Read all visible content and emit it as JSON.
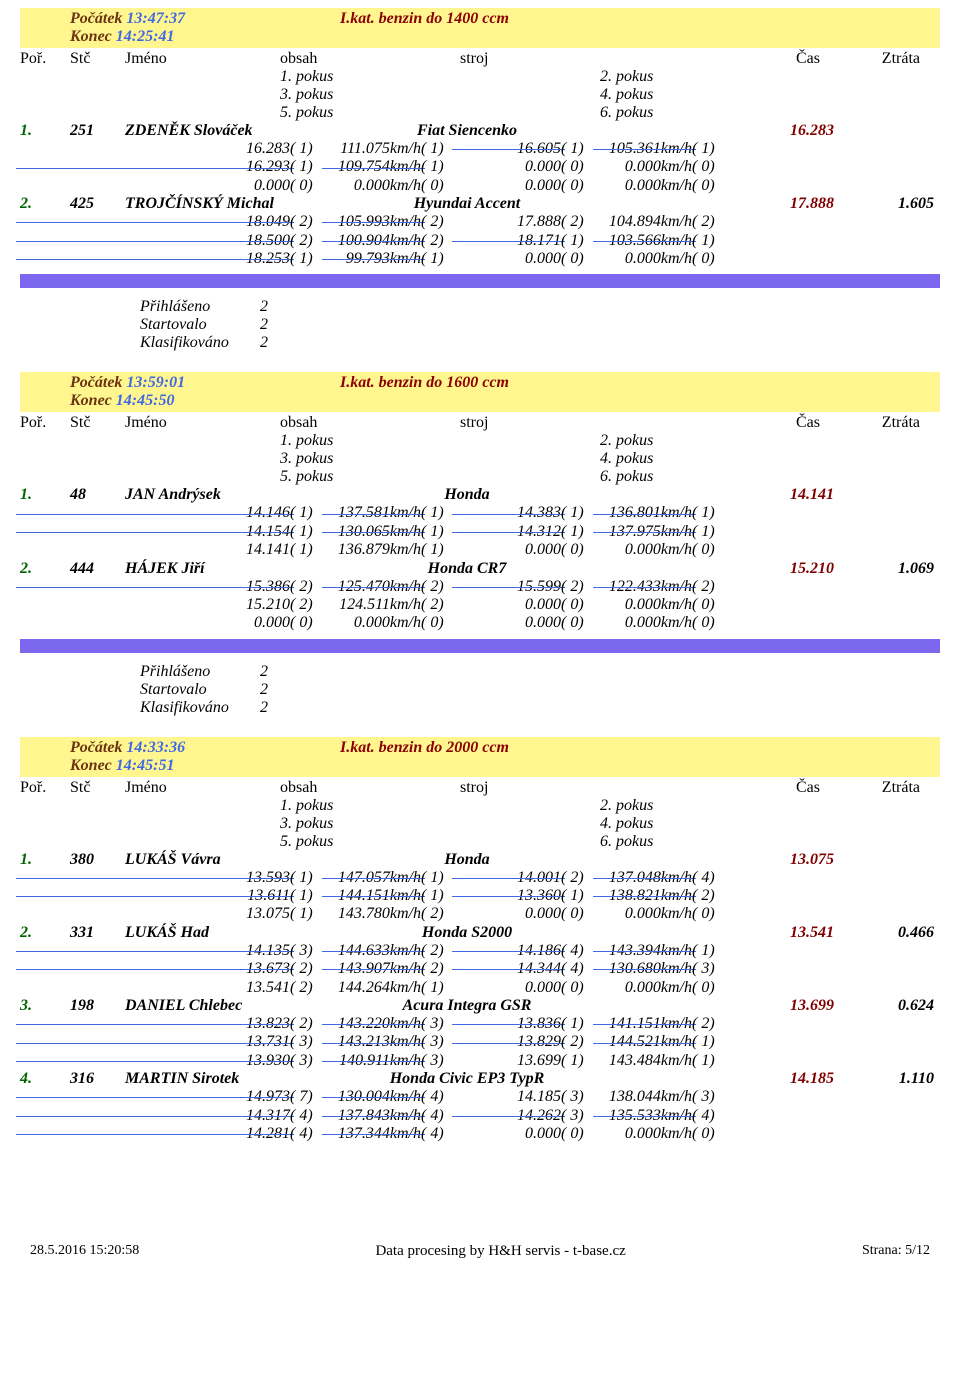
{
  "colors": {
    "brown": "#6b3410",
    "blue": "#4169e1",
    "red": "#8b0000",
    "yellow_bg": "#fff68f",
    "green": "#006400",
    "maroon": "#800000",
    "purple_bar": "#7b68ee"
  },
  "col_headers": {
    "por": "Poř.",
    "stc": "Stč",
    "jm": "Jméno",
    "obs": "obsah",
    "str": "stroj",
    "cas": "Čas",
    "ztr": "Ztráta"
  },
  "pokus_labels": {
    "p1": "1. pokus",
    "p2": "2. pokus",
    "p3": "3. pokus",
    "p4": "4. pokus",
    "p5": "5. pokus",
    "p6": "6. pokus"
  },
  "summary_labels": {
    "prihlaseno": "Přihlášeno",
    "startovalo": "Startovalo",
    "klasifikovano": "Klasifikováno"
  },
  "classes": [
    {
      "title": "I.kat. benzin do 1400 ccm",
      "start_label": "Počátek",
      "start": "13:47:37",
      "end_label": "Konec",
      "end": "14:25:41",
      "entries": [
        {
          "por": "1.",
          "stc": "251",
          "name": "ZDENĚK Slováček",
          "car": "Fiat Siencenko",
          "time": "16.283",
          "loss": "",
          "attempts": [
            {
              "t1": "16.283",
              "r1": "( 1)",
              "s1": "111.075km/h",
              "rr1": "( 1)",
              "t2": "16.605",
              "r2": "( 1)",
              "s2": "105.361km/h",
              "rr2": "( 1)",
              "strike_t2": true,
              "strike_s2": true
            },
            {
              "t1": "16.293",
              "r1": "( 1)",
              "s1": "109.754km/h",
              "rr1": "( 1)",
              "t2": "0.000",
              "r2": "( 0)",
              "s2": "0.000km/h",
              "rr2": "( 0)",
              "strike_t1": true,
              "strike_s1": true
            },
            {
              "t1": "0.000",
              "r1": "( 0)",
              "s1": "0.000km/h",
              "rr1": "( 0)",
              "t2": "0.000",
              "r2": "( 0)",
              "s2": "0.000km/h",
              "rr2": "( 0)"
            }
          ]
        },
        {
          "por": "2.",
          "stc": "425",
          "name": "TROJČÍNSKÝ Michal",
          "car": "Hyundai Accent",
          "time": "17.888",
          "loss": "1.605",
          "attempts": [
            {
              "t1": "18.049",
              "r1": "( 2)",
              "s1": "105.993km/h",
              "rr1": "( 2)",
              "t2": "17.888",
              "r2": "( 2)",
              "s2": "104.894km/h",
              "rr2": "( 2)",
              "strike_t1": true,
              "strike_s1": true
            },
            {
              "t1": "18.500",
              "r1": "( 2)",
              "s1": "100.904km/h",
              "rr1": "( 2)",
              "t2": "18.171",
              "r2": "( 1)",
              "s2": "103.566km/h",
              "rr2": "( 1)",
              "strike_t1": true,
              "strike_s1": true,
              "strike_t2": true,
              "strike_s2": true
            },
            {
              "t1": "18.253",
              "r1": "( 1)",
              "s1": "99.793km/h",
              "rr1": "( 1)",
              "t2": "0.000",
              "r2": "( 0)",
              "s2": "0.000km/h",
              "rr2": "( 0)",
              "strike_t1": true,
              "strike_s1": true
            }
          ]
        }
      ],
      "summary": {
        "prihlaseno": "2",
        "startovalo": "2",
        "klasifikovano": "2"
      }
    },
    {
      "title": "I.kat. benzin do 1600 ccm",
      "start_label": "Počátek",
      "start": "13:59:01",
      "end_label": "Konec",
      "end": "14:45:50",
      "entries": [
        {
          "por": "1.",
          "stc": "48",
          "name": "JAN Andrýsek",
          "car": "Honda",
          "time": "14.141",
          "loss": "",
          "attempts": [
            {
              "t1": "14.146",
              "r1": "( 1)",
              "s1": "137.581km/h",
              "rr1": "( 1)",
              "t2": "14.383",
              "r2": "( 1)",
              "s2": "136.801km/h",
              "rr2": "( 1)",
              "strike_t1": true,
              "strike_s1": true,
              "strike_t2": true,
              "strike_s2": true
            },
            {
              "t1": "14.154",
              "r1": "( 1)",
              "s1": "130.065km/h",
              "rr1": "( 1)",
              "t2": "14.312",
              "r2": "( 1)",
              "s2": "137.975km/h",
              "rr2": "( 1)",
              "strike_t1": true,
              "strike_s1": true,
              "strike_t2": true,
              "strike_s2": true
            },
            {
              "t1": "14.141",
              "r1": "( 1)",
              "s1": "136.879km/h",
              "rr1": "( 1)",
              "t2": "0.000",
              "r2": "( 0)",
              "s2": "0.000km/h",
              "rr2": "( 0)"
            }
          ]
        },
        {
          "por": "2.",
          "stc": "444",
          "name": "HÁJEK Jiří",
          "car": "Honda CR7",
          "time": "15.210",
          "loss": "1.069",
          "attempts": [
            {
              "t1": "15.386",
              "r1": "( 2)",
              "s1": "125.470km/h",
              "rr1": "( 2)",
              "t2": "15.599",
              "r2": "( 2)",
              "s2": "122.433km/h",
              "rr2": "( 2)",
              "strike_t1": true,
              "strike_s1": true,
              "strike_t2": true,
              "strike_s2": true
            },
            {
              "t1": "15.210",
              "r1": "( 2)",
              "s1": "124.511km/h",
              "rr1": "( 2)",
              "t2": "0.000",
              "r2": "( 0)",
              "s2": "0.000km/h",
              "rr2": "( 0)"
            },
            {
              "t1": "0.000",
              "r1": "( 0)",
              "s1": "0.000km/h",
              "rr1": "( 0)",
              "t2": "0.000",
              "r2": "( 0)",
              "s2": "0.000km/h",
              "rr2": "( 0)"
            }
          ]
        }
      ],
      "summary": {
        "prihlaseno": "2",
        "startovalo": "2",
        "klasifikovano": "2"
      }
    },
    {
      "title": "I.kat. benzin do 2000 ccm",
      "start_label": "Počátek",
      "start": "14:33:36",
      "end_label": "Konec",
      "end": "14:45:51",
      "entries": [
        {
          "por": "1.",
          "stc": "380",
          "name": "LUKÁŠ Vávra",
          "car": "Honda",
          "time": "13.075",
          "loss": "",
          "attempts": [
            {
              "t1": "13.593",
              "r1": "( 1)",
              "s1": "147.057km/h",
              "rr1": "( 1)",
              "t2": "14.001",
              "r2": "( 2)",
              "s2": "137.048km/h",
              "rr2": "( 4)",
              "strike_t1": true,
              "strike_s1": true,
              "strike_t2": true,
              "strike_s2": true
            },
            {
              "t1": "13.611",
              "r1": "( 1)",
              "s1": "144.151km/h",
              "rr1": "( 1)",
              "t2": "13.360",
              "r2": "( 1)",
              "s2": "138.821km/h",
              "rr2": "( 2)",
              "strike_t1": true,
              "strike_s1": true,
              "strike_t2": true,
              "strike_s2": true
            },
            {
              "t1": "13.075",
              "r1": "( 1)",
              "s1": "143.780km/h",
              "rr1": "( 2)",
              "t2": "0.000",
              "r2": "( 0)",
              "s2": "0.000km/h",
              "rr2": "( 0)"
            }
          ]
        },
        {
          "por": "2.",
          "stc": "331",
          "name": "LUKÁŠ Had",
          "car": "Honda S2000",
          "time": "13.541",
          "loss": "0.466",
          "attempts": [
            {
              "t1": "14.135",
              "r1": "( 3)",
              "s1": "144.633km/h",
              "rr1": "( 2)",
              "t2": "14.186",
              "r2": "( 4)",
              "s2": "143.394km/h",
              "rr2": "( 1)",
              "strike_t1": true,
              "strike_s1": true,
              "strike_t2": true,
              "strike_s2": true
            },
            {
              "t1": "13.673",
              "r1": "( 2)",
              "s1": "143.907km/h",
              "rr1": "( 2)",
              "t2": "14.344",
              "r2": "( 4)",
              "s2": "130.680km/h",
              "rr2": "( 3)",
              "strike_t1": true,
              "strike_s1": true,
              "strike_t2": true,
              "strike_s2": true
            },
            {
              "t1": "13.541",
              "r1": "( 2)",
              "s1": "144.264km/h",
              "rr1": "( 1)",
              "t2": "0.000",
              "r2": "( 0)",
              "s2": "0.000km/h",
              "rr2": "( 0)"
            }
          ]
        },
        {
          "por": "3.",
          "stc": "198",
          "name": "DANIEL Chlebec",
          "car": "Acura Integra GSR",
          "time": "13.699",
          "loss": "0.624",
          "attempts": [
            {
              "t1": "13.823",
              "r1": "( 2)",
              "s1": "143.220km/h",
              "rr1": "( 3)",
              "t2": "13.836",
              "r2": "( 1)",
              "s2": "141.151km/h",
              "rr2": "( 2)",
              "strike_t1": true,
              "strike_s1": true,
              "strike_t2": true,
              "strike_s2": true
            },
            {
              "t1": "13.731",
              "r1": "( 3)",
              "s1": "143.213km/h",
              "rr1": "( 3)",
              "t2": "13.829",
              "r2": "( 2)",
              "s2": "144.521km/h",
              "rr2": "( 1)",
              "strike_t1": true,
              "strike_s1": true,
              "strike_t2": true,
              "strike_s2": true
            },
            {
              "t1": "13.930",
              "r1": "( 3)",
              "s1": "140.911km/h",
              "rr1": "( 3)",
              "t2": "13.699",
              "r2": "( 1)",
              "s2": "143.484km/h",
              "rr2": "( 1)",
              "strike_t1": true,
              "strike_s1": true
            }
          ]
        },
        {
          "por": "4.",
          "stc": "316",
          "name": "MARTIN Sirotek",
          "car": "Honda Civic EP3 TypR",
          "time": "14.185",
          "loss": "1.110",
          "attempts": [
            {
              "t1": "14.973",
              "r1": "( 7)",
              "s1": "130.004km/h",
              "rr1": "( 4)",
              "t2": "14.185",
              "r2": "( 3)",
              "s2": "138.044km/h",
              "rr2": "( 3)",
              "strike_t1": true,
              "strike_s1": true
            },
            {
              "t1": "14.317",
              "r1": "( 4)",
              "s1": "137.843km/h",
              "rr1": "( 4)",
              "t2": "14.262",
              "r2": "( 3)",
              "s2": "135.533km/h",
              "rr2": "( 4)",
              "strike_t1": true,
              "strike_s1": true,
              "strike_t2": true,
              "strike_s2": true
            },
            {
              "t1": "14.281",
              "r1": "( 4)",
              "s1": "137.344km/h",
              "rr1": "( 4)",
              "t2": "0.000",
              "r2": "( 0)",
              "s2": "0.000km/h",
              "rr2": "( 0)",
              "strike_t1": true,
              "strike_s1": true
            }
          ]
        }
      ]
    }
  ],
  "footer": {
    "left": "28.5.2016 15:20:58",
    "mid": "Data procesing by H&H servis - t-base.cz",
    "right": "Strana: 5/12"
  }
}
